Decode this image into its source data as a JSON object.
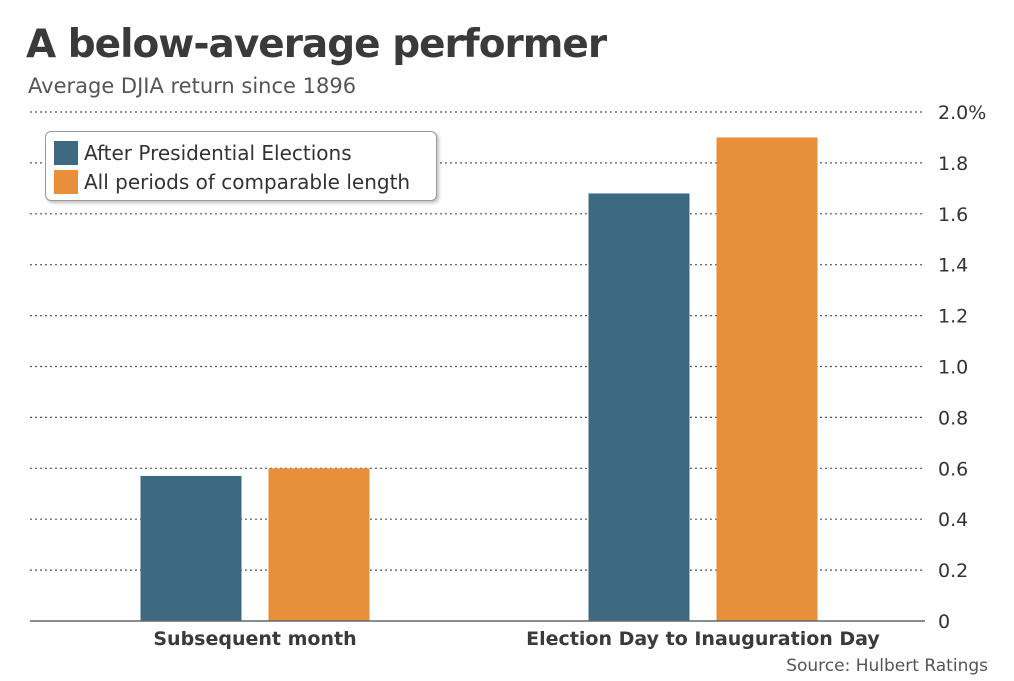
{
  "header": {
    "title": "A below-average performer",
    "subtitle": "Average DJIA return since 1896"
  },
  "source": "Source: Hulbert Ratings",
  "colors": {
    "series_after": "#3d6a80",
    "series_all": "#e78f3b",
    "grid": "#555555",
    "axis": "#666666"
  },
  "chart_data": {
    "type": "bar",
    "title": "A below-average performer",
    "subtitle": "Average DJIA return since 1896",
    "categories": [
      "Subsequent month",
      "Election Day to Inauguration Day"
    ],
    "series": [
      {
        "name": "After Presidential Elections",
        "values": [
          0.57,
          1.68
        ],
        "color": "#3d6a80"
      },
      {
        "name": "All periods of comparable length",
        "values": [
          0.6,
          1.9
        ],
        "color": "#e78f3b"
      }
    ],
    "ylim": [
      0,
      2.0
    ],
    "yticks": [
      {
        "value": 0,
        "label": "0"
      },
      {
        "value": 0.2,
        "label": "0.2"
      },
      {
        "value": 0.4,
        "label": "0.4"
      },
      {
        "value": 0.6,
        "label": "0.6"
      },
      {
        "value": 0.8,
        "label": "0.8"
      },
      {
        "value": 1.0,
        "label": "1.0"
      },
      {
        "value": 1.2,
        "label": "1.2"
      },
      {
        "value": 1.4,
        "label": "1.4"
      },
      {
        "value": 1.6,
        "label": "1.6"
      },
      {
        "value": 1.8,
        "label": "1.8"
      },
      {
        "value": 2.0,
        "label": "2.0%"
      }
    ],
    "y_axis_position": "right",
    "grid": true,
    "legend_position": "top-left",
    "source": "Source: Hulbert Ratings"
  }
}
